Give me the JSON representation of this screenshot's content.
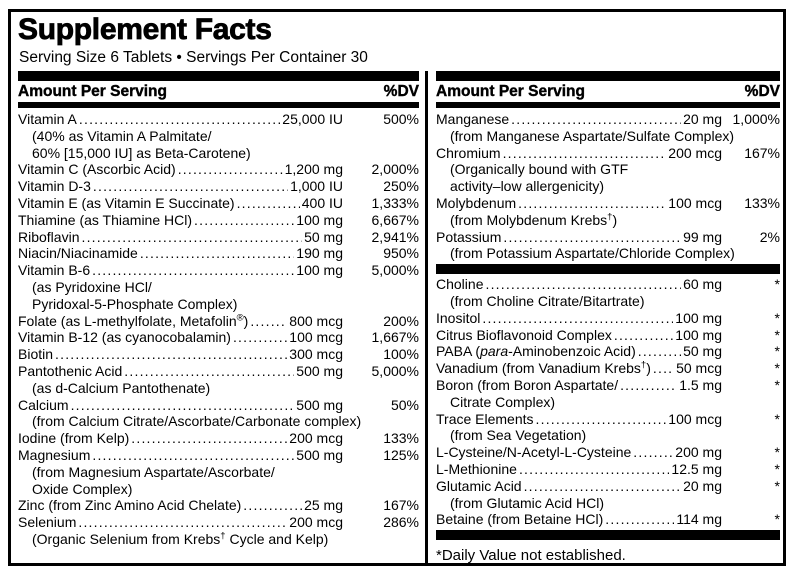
{
  "title": "Supplement Facts",
  "serving_line": "Serving Size 6 Tablets • Servings Per Container 30",
  "column_header": {
    "label": "Amount Per Serving",
    "dv": "%DV"
  },
  "colors": {
    "ink": "#000000",
    "paper": "#ffffff"
  },
  "columns": {
    "left": {
      "rows": [
        {
          "type": "item",
          "name": "Vitamin A",
          "amount": "25,000 IU",
          "dv": "500%",
          "subs": [
            "(40% as Vitamin A Palmitate/",
            "60% [15,000 IU] as Beta-Carotene)"
          ]
        },
        {
          "type": "item",
          "name": "Vitamin C (Ascorbic Acid)",
          "amount": "1,200 mg",
          "dv": "2,000%"
        },
        {
          "type": "item",
          "name": "Vitamin D-3",
          "amount": "1,000 IU",
          "dv": "250%"
        },
        {
          "type": "item",
          "name": "Vitamin E (as Vitamin E Succinate)",
          "amount": "400 IU",
          "dv": "1,333%"
        },
        {
          "type": "item",
          "name": "Thiamine (as Thiamine HCl)",
          "amount": "100 mg",
          "dv": "6,667%"
        },
        {
          "type": "item",
          "name": "Riboflavin",
          "amount": "50 mg",
          "dv": "2,941%"
        },
        {
          "type": "item",
          "name": "Niacin/Niacinamide",
          "amount": "190 mg",
          "dv": "950%"
        },
        {
          "type": "item",
          "name": "Vitamin B-6",
          "amount": "100 mg",
          "dv": "5,000%",
          "subs": [
            "(as Pyridoxine HCl/",
            "Pyridoxal-5-Phosphate Complex)"
          ]
        },
        {
          "type": "item",
          "name": [
            {
              "t": "Folate (as L-methylfolate, Metafolin"
            },
            {
              "sup": "®"
            },
            {
              "t": ")"
            }
          ],
          "amount": "800 mcg",
          "dv": "200%"
        },
        {
          "type": "item",
          "name": "Vitamin B-12 (as cyanocobalamin)",
          "amount": "100 mcg",
          "dv": "1,667%"
        },
        {
          "type": "item",
          "name": "Biotin",
          "amount": "300 mcg",
          "dv": "100%"
        },
        {
          "type": "item",
          "name": "Pantothenic Acid",
          "amount": "500 mg",
          "dv": "5,000%",
          "subs": [
            "(as d-Calcium Pantothenate)"
          ]
        },
        {
          "type": "item",
          "name": "Calcium",
          "amount": "500 mg",
          "dv": "50%",
          "subs": [
            "(from Calcium Citrate/Ascorbate/Carbonate complex)"
          ]
        },
        {
          "type": "item",
          "name": "Iodine (from Kelp)",
          "amount": "200 mcg",
          "dv": "133%"
        },
        {
          "type": "item",
          "name": "Magnesium",
          "amount": "500 mg",
          "dv": "125%",
          "subs": [
            "(from Magnesium Aspartate/Ascorbate/",
            "Oxide Complex)"
          ]
        },
        {
          "type": "item",
          "name": "Zinc (from Zinc Amino Acid Chelate)",
          "amount": "25 mg",
          "dv": "167%"
        },
        {
          "type": "item",
          "name": "Selenium",
          "amount": "200 mcg",
          "dv": "286%",
          "subs": [
            [
              {
                "t": "(Organic Selenium from Krebs"
              },
              {
                "sup": "†"
              },
              {
                "t": " Cycle and Kelp)"
              }
            ]
          ]
        }
      ]
    },
    "right": {
      "rows": [
        {
          "type": "item",
          "name": "Manganese",
          "amount": "20 mg",
          "dv": "1,000%",
          "subs": [
            "(from Manganese Aspartate/Sulfate Complex)"
          ]
        },
        {
          "type": "item",
          "name": "Chromium",
          "amount": "200 mcg",
          "dv": "167%",
          "subs": [
            "(Organically bound with GTF",
            "activity–low allergenicity)"
          ]
        },
        {
          "type": "item",
          "name": "Molybdenum",
          "amount": "100 mcg",
          "dv": "133%",
          "subs": [
            [
              {
                "t": "(from Molybdenum Krebs"
              },
              {
                "sup": "†"
              },
              {
                "t": ")"
              }
            ]
          ]
        },
        {
          "type": "item",
          "name": "Potassium",
          "amount": "99 mg",
          "dv": "2%",
          "subs": [
            "(from Potassium Aspartate/Chloride Complex)"
          ]
        },
        {
          "type": "bar"
        },
        {
          "type": "item",
          "name": "Choline",
          "amount": "60 mg",
          "dv": "*",
          "subs": [
            "(from Choline Citrate/Bitartrate)"
          ]
        },
        {
          "type": "item",
          "name": "Inositol",
          "amount": "100 mg",
          "dv": "*"
        },
        {
          "type": "item",
          "name": "Citrus Bioflavonoid Complex",
          "amount": "100 mg",
          "dv": "*"
        },
        {
          "type": "item",
          "name": [
            {
              "t": "PABA ("
            },
            {
              "i": "para"
            },
            {
              "t": "-Aminobenzoic Acid)"
            }
          ],
          "amount": "50 mg",
          "dv": "*"
        },
        {
          "type": "item",
          "name": [
            {
              "t": "Vanadium (from Vanadium Krebs"
            },
            {
              "sup": "†"
            },
            {
              "t": ")"
            }
          ],
          "amount": "50 mcg",
          "dv": "*"
        },
        {
          "type": "item",
          "name": "Boron (from Boron Aspartate/",
          "amount": "1.5 mg",
          "dv": "*",
          "subs": [
            "Citrate Complex)"
          ]
        },
        {
          "type": "item",
          "name": "Trace Elements",
          "amount": "100 mcg",
          "dv": "*",
          "subs": [
            "(from Sea Vegetation)"
          ]
        },
        {
          "type": "item",
          "name": "L-Cysteine/N-Acetyl-L-Cysteine",
          "amount": "200 mg",
          "dv": "*"
        },
        {
          "type": "item",
          "name": "L-Methionine",
          "amount": "12.5 mg",
          "dv": "*"
        },
        {
          "type": "item",
          "name": "Glutamic Acid",
          "amount": "20 mg",
          "dv": "*",
          "subs": [
            "(from Glutamic Acid HCl)"
          ]
        },
        {
          "type": "item",
          "name": "Betaine (from Betaine HCl)",
          "amount": "114 mg",
          "dv": "*"
        },
        {
          "type": "bar"
        },
        {
          "type": "note",
          "text": "*Daily Value not established."
        }
      ]
    }
  }
}
